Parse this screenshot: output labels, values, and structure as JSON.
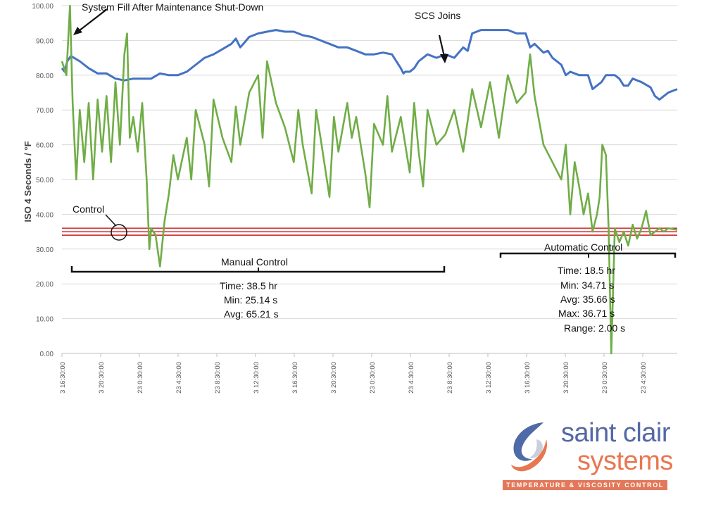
{
  "chart_data": {
    "type": "line",
    "title": "",
    "ylabel": "ISO 4 Seconds / °F",
    "ylim": [
      0,
      100
    ],
    "yticks": [
      "0.00",
      "10.00",
      "20.00",
      "30.00",
      "40.00",
      "50.00",
      "60.00",
      "70.00",
      "80.00",
      "90.00",
      "100.00"
    ],
    "xticks": [
      "3 16:30:00",
      "3 20:30:00",
      "23 0:30:00",
      "23 4:30:00",
      "23 8:30:00",
      "3 12:30:00",
      "3 16:30:00",
      "3 20:30:00",
      "23 0:30:00",
      "23 4:30:00",
      "23 8:30:00",
      "3 12:30:00",
      "3 16:30:00",
      "3 20:30:00",
      "23 0:30:00",
      "23 4:30:00"
    ],
    "grid": "horizontal",
    "series": [
      {
        "key": "temperature",
        "color": "#4472c4",
        "points": [
          [
            0,
            82
          ],
          [
            0.3,
            81
          ],
          [
            0.6,
            84
          ],
          [
            1,
            85.5
          ],
          [
            2,
            84
          ],
          [
            3,
            82
          ],
          [
            4,
            80.5
          ],
          [
            5,
            80.5
          ],
          [
            6,
            79
          ],
          [
            7,
            78.5
          ],
          [
            8,
            79
          ],
          [
            9,
            79
          ],
          [
            10,
            79
          ],
          [
            11,
            80.5
          ],
          [
            12,
            80
          ],
          [
            13,
            80
          ],
          [
            14,
            81
          ],
          [
            15,
            83
          ],
          [
            16,
            85
          ],
          [
            17,
            86
          ],
          [
            18,
            87.5
          ],
          [
            19,
            89
          ],
          [
            19.5,
            90.5
          ],
          [
            20,
            88
          ],
          [
            20.5,
            89.5
          ],
          [
            21,
            91
          ],
          [
            22,
            92
          ],
          [
            23,
            92.5
          ],
          [
            24,
            93
          ],
          [
            25,
            92.5
          ],
          [
            26,
            92.5
          ],
          [
            27,
            91.5
          ],
          [
            28,
            91
          ],
          [
            29,
            90
          ],
          [
            30,
            89
          ],
          [
            31,
            88
          ],
          [
            32,
            88
          ],
          [
            33,
            87
          ],
          [
            34,
            86
          ],
          [
            35,
            86
          ],
          [
            36,
            86.5
          ],
          [
            37,
            86
          ],
          [
            37.5,
            84
          ],
          [
            38,
            82
          ],
          [
            38.3,
            80.5
          ],
          [
            38.5,
            81
          ],
          [
            39,
            81
          ],
          [
            39.5,
            82
          ],
          [
            40,
            84
          ],
          [
            41,
            86
          ],
          [
            42,
            85
          ],
          [
            43,
            86
          ],
          [
            44,
            85
          ],
          [
            45,
            88
          ],
          [
            45.5,
            87
          ],
          [
            46,
            92
          ],
          [
            47,
            93
          ],
          [
            48,
            93
          ],
          [
            49,
            93
          ],
          [
            50,
            93
          ],
          [
            51,
            92
          ],
          [
            52,
            92
          ],
          [
            52.5,
            88
          ],
          [
            53,
            89
          ],
          [
            54,
            86.5
          ],
          [
            54.5,
            87
          ],
          [
            55,
            85
          ],
          [
            56,
            83
          ],
          [
            56.5,
            80
          ],
          [
            57,
            81
          ],
          [
            58,
            80
          ],
          [
            59,
            80
          ],
          [
            59.5,
            76
          ],
          [
            60,
            77
          ],
          [
            60.5,
            78
          ],
          [
            61,
            80
          ],
          [
            62,
            80
          ],
          [
            62.5,
            79
          ],
          [
            63,
            77
          ],
          [
            63.5,
            77
          ],
          [
            64,
            79
          ],
          [
            65,
            78
          ],
          [
            66,
            76.5
          ],
          [
            66.5,
            74
          ],
          [
            67,
            73
          ],
          [
            67.5,
            74
          ],
          [
            68,
            75
          ],
          [
            69,
            76
          ]
        ]
      },
      {
        "key": "viscosity",
        "color": "#70ad47",
        "points": [
          [
            0,
            84
          ],
          [
            0.5,
            80
          ],
          [
            0.9,
            100
          ],
          [
            1.2,
            72
          ],
          [
            1.6,
            50
          ],
          [
            2,
            70
          ],
          [
            2.5,
            55
          ],
          [
            3,
            72
          ],
          [
            3.5,
            50
          ],
          [
            4,
            73
          ],
          [
            4.5,
            58
          ],
          [
            5,
            74
          ],
          [
            5.5,
            55
          ],
          [
            6,
            78
          ],
          [
            6.5,
            60
          ],
          [
            7,
            86
          ],
          [
            7.3,
            92
          ],
          [
            7.6,
            62
          ],
          [
            8,
            68
          ],
          [
            8.5,
            58
          ],
          [
            9,
            72
          ],
          [
            9.5,
            50
          ],
          [
            9.8,
            30
          ],
          [
            10,
            36
          ],
          [
            10.5,
            34
          ],
          [
            11,
            25
          ],
          [
            11.5,
            38
          ],
          [
            12,
            46
          ],
          [
            12.5,
            57
          ],
          [
            13,
            50
          ],
          [
            14,
            62
          ],
          [
            14.5,
            50
          ],
          [
            15,
            70
          ],
          [
            16,
            60
          ],
          [
            16.5,
            48
          ],
          [
            17,
            73
          ],
          [
            18,
            62
          ],
          [
            19,
            55
          ],
          [
            19.5,
            71
          ],
          [
            20,
            60
          ],
          [
            21,
            75
          ],
          [
            22,
            80
          ],
          [
            22.5,
            62
          ],
          [
            23,
            84
          ],
          [
            24,
            72
          ],
          [
            25,
            65
          ],
          [
            26,
            55
          ],
          [
            26.5,
            70
          ],
          [
            27,
            60
          ],
          [
            28,
            46
          ],
          [
            28.5,
            70
          ],
          [
            29,
            62
          ],
          [
            30,
            45
          ],
          [
            30.5,
            68
          ],
          [
            31,
            58
          ],
          [
            32,
            72
          ],
          [
            32.5,
            62
          ],
          [
            33,
            68
          ],
          [
            34,
            52
          ],
          [
            34.5,
            42
          ],
          [
            35,
            66
          ],
          [
            36,
            60
          ],
          [
            36.5,
            74
          ],
          [
            37,
            58
          ],
          [
            38,
            68
          ],
          [
            39,
            52
          ],
          [
            39.5,
            72
          ],
          [
            40,
            58
          ],
          [
            40.5,
            48
          ],
          [
            41,
            70
          ],
          [
            42,
            60
          ],
          [
            43,
            63
          ],
          [
            44,
            70
          ],
          [
            45,
            58
          ],
          [
            46,
            76
          ],
          [
            47,
            65
          ],
          [
            48,
            78
          ],
          [
            49,
            62
          ],
          [
            50,
            80
          ],
          [
            51,
            72
          ],
          [
            52,
            75
          ],
          [
            52.5,
            86
          ],
          [
            53,
            74
          ],
          [
            54,
            60
          ],
          [
            55,
            55
          ],
          [
            56,
            50
          ],
          [
            56.5,
            60
          ],
          [
            57,
            40
          ],
          [
            57.5,
            55
          ],
          [
            58,
            48
          ],
          [
            58.5,
            40
          ],
          [
            59,
            46
          ],
          [
            59.5,
            35
          ],
          [
            60,
            40
          ],
          [
            60.3,
            45
          ],
          [
            60.6,
            60
          ],
          [
            61,
            57
          ],
          [
            61.3,
            36
          ],
          [
            61.6,
            0
          ],
          [
            62,
            36
          ],
          [
            62.5,
            32
          ],
          [
            63,
            35
          ],
          [
            63.5,
            31
          ],
          [
            64,
            37
          ],
          [
            64.5,
            33
          ],
          [
            65,
            36
          ],
          [
            65.5,
            41
          ],
          [
            66,
            34
          ],
          [
            66.5,
            35
          ],
          [
            67,
            36
          ],
          [
            67.5,
            35
          ],
          [
            68,
            36
          ],
          [
            69,
            35.5
          ]
        ]
      }
    ],
    "control_band": {
      "center": 35,
      "upper": 36,
      "lower": 34
    },
    "annotations": {
      "system_fill": "System Fill After Maintenance Shut-Down",
      "scs_joins": "SCS Joins",
      "control": "Control",
      "manual_control": "Manual Control",
      "manual_time": "Time:  38.5 hr",
      "manual_min": "Min:  25.14 s",
      "manual_avg": "Avg:  65.21 s",
      "automatic_control": "Automatic Control",
      "auto_time": "Time:  18.5 hr",
      "auto_min": "Min:  34.71 s",
      "auto_avg": "Avg:  35.66 s",
      "auto_max": "Max:  36.71 s",
      "auto_range": "Range:    2.00 s"
    }
  },
  "logo": {
    "brand_line1": "saint clair",
    "brand_line2": "systems",
    "tagline": "TEMPERATURE & VISCOSITY CONTROL",
    "colors": {
      "blue": "#5468a6",
      "orange": "#e8774f"
    }
  }
}
